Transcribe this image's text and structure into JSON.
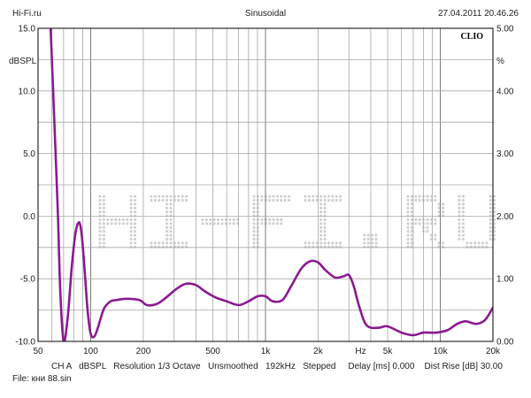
{
  "header": {
    "left": "Hi-Fi.ru",
    "center": "Sinusoidal",
    "right": "27.04.2011 20.46.26"
  },
  "brand": "CLIO",
  "footer": {
    "line1": "CH A   dBSPL   Resolution 1/3 Octave   Unsmoothed   192kHz   Stepped     Delay [ms] 0.000    Dist Rise [dB] 30.00",
    "line2": "File: кни 88.sin"
  },
  "colors": {
    "curve": "#8b1a8f",
    "grid": "#a8a8a8",
    "frame": "#000000",
    "watermark": "#cfcfcf"
  },
  "watermark_text": "HI-FI.RU",
  "chart_data": {
    "type": "line",
    "xscale": "log",
    "xlim": [
      50,
      20000
    ],
    "ylim_left": [
      -10,
      15
    ],
    "ylim_right": [
      0,
      5
    ],
    "left_unit": "dBSPL",
    "right_unit": "%",
    "grid": true,
    "x_tick_labels": [
      {
        "value": 50,
        "label": "50"
      },
      {
        "value": 100,
        "label": "100"
      },
      {
        "value": 200,
        "label": "200"
      },
      {
        "value": 500,
        "label": "500"
      },
      {
        "value": 1000,
        "label": "1k"
      },
      {
        "value": 2000,
        "label": "2k"
      },
      {
        "value": 3500,
        "label": "Hz"
      },
      {
        "value": 5000,
        "label": "5k"
      },
      {
        "value": 10000,
        "label": "10k"
      },
      {
        "value": 20000,
        "label": "20k"
      }
    ],
    "y_left_ticks": [
      {
        "value": 15,
        "label": "15.0"
      },
      {
        "value": 10,
        "label": "10.0"
      },
      {
        "value": 5,
        "label": "5.0"
      },
      {
        "value": 0,
        "label": "0.0"
      },
      {
        "value": -5,
        "label": "-5.0"
      },
      {
        "value": -10,
        "label": "-10.0"
      }
    ],
    "y_right_ticks": [
      {
        "value": 5,
        "label": "5.00"
      },
      {
        "value": 4,
        "label": "4.00"
      },
      {
        "value": 3,
        "label": "3.00"
      },
      {
        "value": 2,
        "label": "2.00"
      },
      {
        "value": 1,
        "label": "1.00"
      },
      {
        "value": 0,
        "label": "0.00"
      }
    ],
    "series": [
      {
        "color": "#8b1a8f",
        "x": [
          59,
          61,
          63,
          65,
          67,
          70,
          74,
          78,
          82,
          86,
          89,
          92,
          96,
          100,
          105,
          110,
          115,
          120,
          130,
          140,
          160,
          190,
          210,
          240,
          270,
          310,
          350,
          400,
          450,
          520,
          600,
          700,
          800,
          900,
          1000,
          1100,
          1250,
          1400,
          1600,
          1800,
          2000,
          2200,
          2500,
          2800,
          3000,
          3200,
          3400,
          3700,
          4000,
          4500,
          5000,
          6000,
          7000,
          8000,
          9500,
          11000,
          12500,
          14000,
          16000,
          18000,
          20000
        ],
        "y": [
          15,
          10,
          5,
          0,
          -6,
          -10,
          -8,
          -4,
          -1.3,
          -0.5,
          -1.6,
          -4,
          -7.5,
          -9.4,
          -9.6,
          -8.9,
          -8,
          -7.3,
          -6.8,
          -6.7,
          -6.6,
          -6.7,
          -7.1,
          -7.0,
          -6.5,
          -5.8,
          -5.4,
          -5.5,
          -6.0,
          -6.5,
          -6.8,
          -7.1,
          -6.8,
          -6.4,
          -6.4,
          -6.8,
          -6.7,
          -5.6,
          -4.2,
          -3.6,
          -3.7,
          -4.3,
          -4.9,
          -4.8,
          -4.7,
          -5.6,
          -7.0,
          -8.5,
          -8.9,
          -8.9,
          -8.8,
          -9.3,
          -9.5,
          -9.3,
          -9.3,
          -9.1,
          -8.6,
          -8.4,
          -8.6,
          -8.3,
          -7.3
        ]
      }
    ]
  }
}
